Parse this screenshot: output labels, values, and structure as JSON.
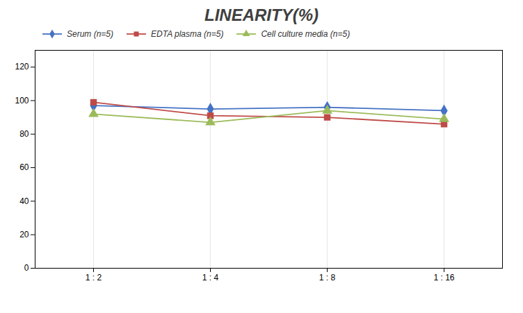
{
  "chart_data": {
    "type": "line",
    "title": "LINEARITY(%)",
    "categories": [
      "1 : 2",
      "1 : 4",
      "1 : 8",
      "1 : 16"
    ],
    "series": [
      {
        "name": "Serum (n=5)",
        "color": "#4472C4",
        "marker": "diamond",
        "values": [
          97,
          95,
          96,
          94
        ]
      },
      {
        "name": "EDTA plasma (n=5)",
        "color": "#BE4B48",
        "marker": "square",
        "values": [
          99,
          91,
          90,
          86
        ]
      },
      {
        "name": "Cell culture media (n=5)",
        "color": "#9BBB59",
        "marker": "triangle",
        "values": [
          92,
          87,
          94,
          89
        ]
      }
    ],
    "ylim": [
      0,
      130
    ],
    "yticks": [
      0,
      20,
      40,
      60,
      80,
      100,
      120
    ],
    "grid": "x",
    "legend": "top"
  }
}
